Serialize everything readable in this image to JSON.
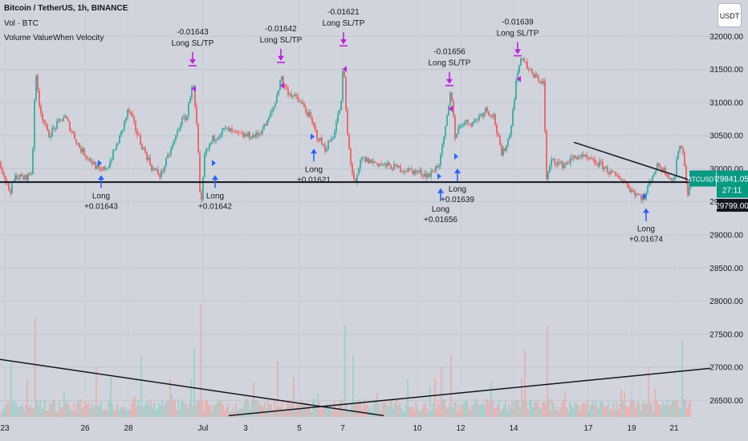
{
  "legend": {
    "symbol": "Bitcoin / TetherUS, 1h, BINANCE",
    "volume": "Vol · BTC",
    "indicator": "Volume ValueWhen Velocity"
  },
  "currency_button": "USDT",
  "chart_data": {
    "type": "candlestick",
    "symbol_tag": "BTCUSDT",
    "last_price": "29841.05",
    "countdown": "27:11",
    "support_price": "29799.00",
    "colors": {
      "up": "#26a69a",
      "down": "#ef5350",
      "long_arrow": "#2962ff",
      "exit_arrow": "#c020e0",
      "line": "#131722"
    },
    "ylim": [
      26250,
      32550
    ],
    "y_ticks": [
      26500,
      27000,
      27500,
      28000,
      28500,
      29000,
      29500,
      30000,
      30500,
      31000,
      31500,
      32000
    ],
    "y_tick_labels": [
      "26500.00",
      "27000.00",
      "27500.00",
      "28000.00",
      "28500.00",
      "29000.00",
      "29500.00",
      "30000.00",
      "30500.00",
      "31000.00",
      "31500.00",
      "32000.00"
    ],
    "x_ticks": [
      {
        "i": 6,
        "label": "23"
      },
      {
        "i": 106,
        "label": "26"
      },
      {
        "i": 160,
        "label": "28"
      },
      {
        "i": 253,
        "label": "Jul"
      },
      {
        "i": 306,
        "label": "3"
      },
      {
        "i": 373,
        "label": "5"
      },
      {
        "i": 427,
        "label": "7"
      },
      {
        "i": 520,
        "label": "10"
      },
      {
        "i": 574,
        "label": "12"
      },
      {
        "i": 640,
        "label": "14"
      },
      {
        "i": 733,
        "label": "17"
      },
      {
        "i": 787,
        "label": "19"
      },
      {
        "i": 840,
        "label": "21"
      }
    ],
    "price_path": [
      [
        0,
        30100
      ],
      [
        12,
        29650
      ],
      [
        20,
        29900
      ],
      [
        30,
        29850
      ],
      [
        40,
        29950
      ],
      [
        44,
        31450
      ],
      [
        50,
        30900
      ],
      [
        60,
        30500
      ],
      [
        80,
        30800
      ],
      [
        100,
        30300
      ],
      [
        115,
        30100
      ],
      [
        125,
        29950
      ],
      [
        135,
        30050
      ],
      [
        150,
        30500
      ],
      [
        160,
        30900
      ],
      [
        175,
        30400
      ],
      [
        190,
        30000
      ],
      [
        200,
        29900
      ],
      [
        215,
        30350
      ],
      [
        225,
        30700
      ],
      [
        233,
        30800
      ],
      [
        240,
        31350
      ],
      [
        246,
        30500
      ],
      [
        250,
        29300
      ],
      [
        255,
        30200
      ],
      [
        265,
        30450
      ],
      [
        280,
        30600
      ],
      [
        300,
        30500
      ],
      [
        320,
        30500
      ],
      [
        333,
        30700
      ],
      [
        343,
        31000
      ],
      [
        350,
        31400
      ],
      [
        356,
        31200
      ],
      [
        365,
        31100
      ],
      [
        375,
        31000
      ],
      [
        385,
        30800
      ],
      [
        395,
        30500
      ],
      [
        405,
        30300
      ],
      [
        415,
        30500
      ],
      [
        425,
        31000
      ],
      [
        428,
        31650
      ],
      [
        432,
        30600
      ],
      [
        438,
        30000
      ],
      [
        443,
        29750
      ],
      [
        450,
        30150
      ],
      [
        465,
        30100
      ],
      [
        480,
        30050
      ],
      [
        500,
        30000
      ],
      [
        520,
        29950
      ],
      [
        535,
        29900
      ],
      [
        548,
        30100
      ],
      [
        555,
        30600
      ],
      [
        562,
        31200
      ],
      [
        567,
        30500
      ],
      [
        575,
        30700
      ],
      [
        590,
        30700
      ],
      [
        605,
        30900
      ],
      [
        615,
        30800
      ],
      [
        625,
        30200
      ],
      [
        635,
        30500
      ],
      [
        645,
        31500
      ],
      [
        652,
        31700
      ],
      [
        658,
        31500
      ],
      [
        665,
        31400
      ],
      [
        678,
        31300
      ],
      [
        680,
        29800
      ],
      [
        688,
        30150
      ],
      [
        700,
        30050
      ],
      [
        720,
        30200
      ],
      [
        740,
        30100
      ],
      [
        750,
        30050
      ],
      [
        765,
        29900
      ],
      [
        775,
        29850
      ],
      [
        785,
        29700
      ],
      [
        795,
        29600
      ],
      [
        803,
        29550
      ],
      [
        812,
        29900
      ],
      [
        820,
        30050
      ],
      [
        830,
        29950
      ],
      [
        840,
        29800
      ],
      [
        846,
        30400
      ],
      [
        852,
        30200
      ],
      [
        857,
        29600
      ],
      [
        862,
        29841
      ]
    ],
    "signals": [
      {
        "type": "long",
        "i": 126,
        "y": 30050,
        "label": "Long",
        "value": "+0.01643"
      },
      {
        "type": "long",
        "i": 268,
        "y": 30050,
        "label": "Long",
        "value": "+0.01642"
      },
      {
        "type": "long",
        "i": 391,
        "y": 30450,
        "label": "Long",
        "value": "+0.01621"
      },
      {
        "type": "long",
        "i": 549,
        "y": 29850,
        "label": "Long",
        "value": "+0.01656"
      },
      {
        "type": "long",
        "i": 570,
        "y": 30150,
        "label": "Long",
        "value": "+0.01639"
      },
      {
        "type": "long",
        "i": 805,
        "y": 29550,
        "label": "Long",
        "value": "+0.01674"
      },
      {
        "type": "exit",
        "i": 240,
        "y": 31400,
        "label": "Long SL/TP",
        "value": "-0.01643"
      },
      {
        "type": "exit",
        "i": 350,
        "y": 31450,
        "label": "Long SL/TP",
        "value": "-0.01642"
      },
      {
        "type": "exit",
        "i": 428,
        "y": 31700,
        "label": "Long SL/TP",
        "value": "-0.01621"
      },
      {
        "type": "exit",
        "i": 560,
        "y": 31100,
        "label": "Long SL/TP",
        "value": "-0.01656"
      },
      {
        "type": "exit",
        "i": 645,
        "y": 31550,
        "label": "Long SL/TP",
        "value": "-0.01639"
      }
    ],
    "trendlines": [
      {
        "name": "support",
        "from": [
          0,
          29799
        ],
        "to": [
          862,
          29799
        ],
        "width": 2
      },
      {
        "name": "upper-descending",
        "from": [
          715,
          30400
        ],
        "to": [
          872,
          29780
        ],
        "width": 1.5
      },
      {
        "name": "volume-descending",
        "from": [
          0,
          27120
        ],
        "to": [
          478,
          26270
        ],
        "width": 1.5
      },
      {
        "name": "volume-ascending",
        "from": [
          285,
          26270
        ],
        "to": [
          890,
          26990
        ],
        "width": 1.5
      }
    ],
    "volume_spikes": [
      [
        14,
        0.5
      ],
      [
        44,
        0.88
      ],
      [
        120,
        0.45
      ],
      [
        176,
        0.55
      ],
      [
        241,
        0.62
      ],
      [
        250,
        1.0
      ],
      [
        345,
        0.5
      ],
      [
        429,
        0.82
      ],
      [
        440,
        0.55
      ],
      [
        550,
        0.45
      ],
      [
        562,
        0.55
      ],
      [
        653,
        0.6
      ],
      [
        681,
        0.82
      ],
      [
        808,
        0.45
      ],
      [
        850,
        0.68
      ]
    ],
    "volume_max_height": 140,
    "volume_base": 0.13
  }
}
